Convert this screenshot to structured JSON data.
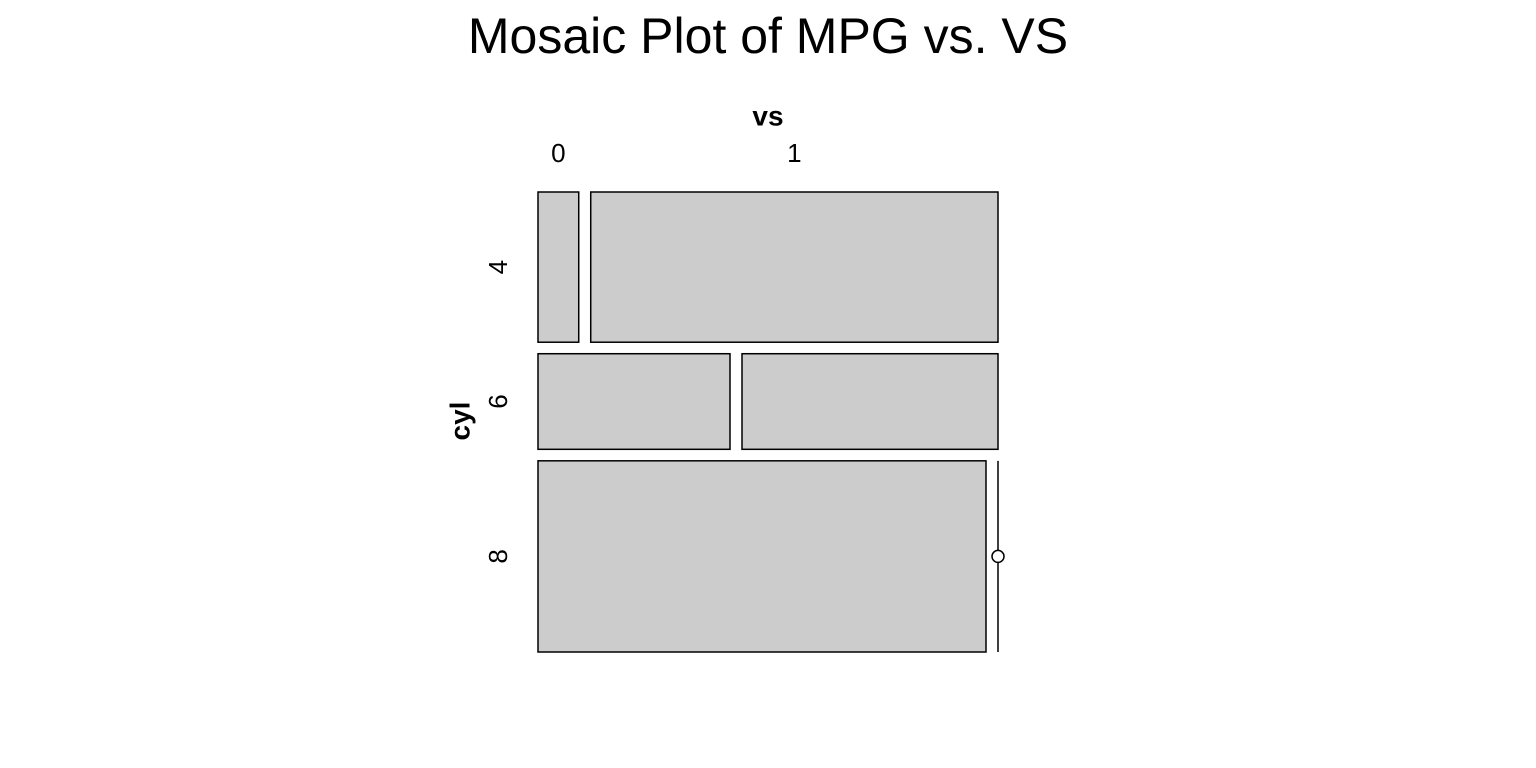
{
  "chart_data": {
    "type": "mosaic",
    "title": "Mosaic Plot of MPG vs. VS",
    "x_label": "vs",
    "y_label": "cyl",
    "categories": [
      "4",
      "6",
      "8"
    ],
    "series": [
      {
        "name": "0",
        "values": [
          1,
          3,
          14
        ]
      },
      {
        "name": "1",
        "values": [
          10,
          4,
          0
        ]
      }
    ],
    "color": "#cccccc"
  }
}
